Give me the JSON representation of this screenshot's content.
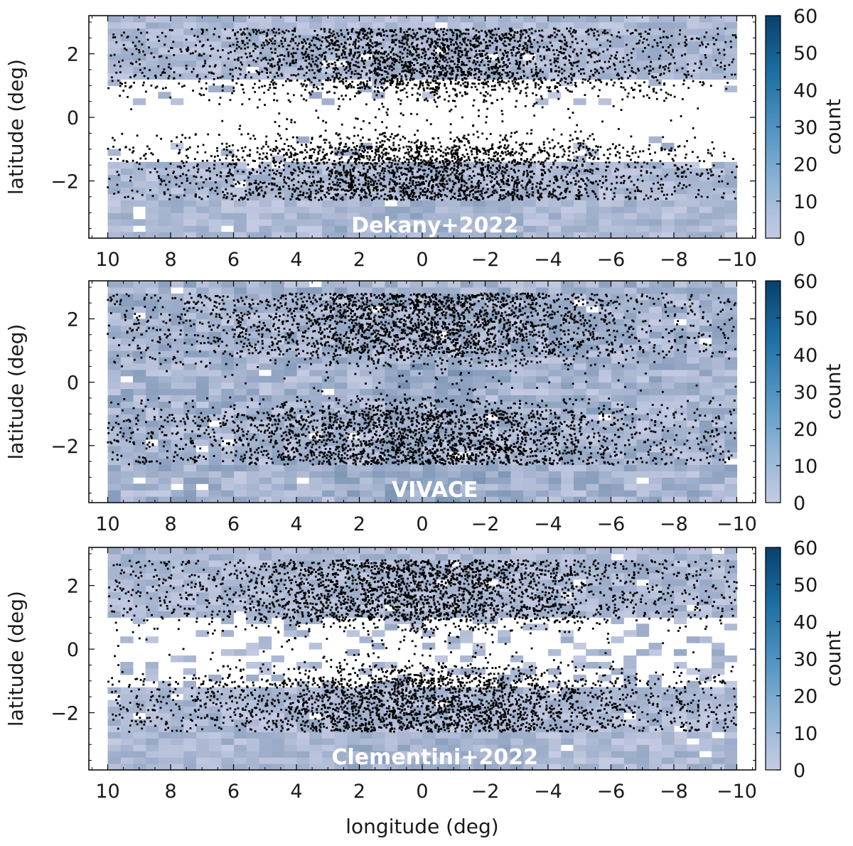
{
  "figure": {
    "xlabel": "longitude (deg)",
    "ylabel": "latitude (deg)",
    "colorbar_label": "count",
    "colorbar_ticks": [
      "0",
      "10",
      "20",
      "30",
      "40",
      "50",
      "60"
    ],
    "colormap": {
      "low": "#c5cbe3",
      "high": "#08406a"
    },
    "point_color": "#000000",
    "background_color": "#ffffff"
  },
  "chart_data": [
    {
      "type": "heatmap",
      "panel_label": "Dekany+2022",
      "xlabel": "",
      "ylabel": "latitude (deg)",
      "xlim": [
        10.6,
        -10.6
      ],
      "ylim": [
        -3.8,
        3.2
      ],
      "xticks": [
        "10",
        "8",
        "6",
        "4",
        "2",
        "0",
        "−2",
        "−4",
        "−6",
        "−8",
        "−10"
      ],
      "xtick_values": [
        10,
        8,
        6,
        4,
        2,
        0,
        -2,
        -4,
        -6,
        -8,
        -10
      ],
      "yticks": [
        "2",
        "0",
        "−2"
      ],
      "ytick_values": [
        2,
        0,
        -2
      ],
      "colorbar": {
        "label": "count",
        "range": [
          0,
          60
        ]
      },
      "scatter_region": {
        "l": [
          -10,
          10
        ],
        "b": [
          -2.6,
          2.8
        ]
      },
      "heatmap_region": {
        "l": [
          -10,
          10
        ],
        "b": [
          -3.8,
          3.2
        ]
      },
      "background_count_range": [
        0,
        15
      ],
      "density_note": "scatter dense at |b| ≈ 1–2.5 near l ≈ 0; near-empty at |b| < 0.5 (white gap in heatmap)"
    },
    {
      "type": "heatmap",
      "panel_label": "VIVACE",
      "xlabel": "",
      "ylabel": "latitude (deg)",
      "xlim": [
        10.6,
        -10.6
      ],
      "ylim": [
        -3.8,
        3.2
      ],
      "xticks": [
        "10",
        "8",
        "6",
        "4",
        "2",
        "0",
        "−2",
        "−4",
        "−6",
        "−8",
        "−10"
      ],
      "xtick_values": [
        10,
        8,
        6,
        4,
        2,
        0,
        -2,
        -4,
        -6,
        -8,
        -10
      ],
      "yticks": [
        "2",
        "0",
        "−2"
      ],
      "ytick_values": [
        2,
        0,
        -2
      ],
      "colorbar": {
        "label": "count",
        "range": [
          0,
          60
        ]
      },
      "scatter_region": {
        "l": [
          -10,
          10
        ],
        "b": [
          -2.6,
          2.8
        ]
      },
      "heatmap_region": {
        "l": [
          -10,
          10
        ],
        "b": [
          -3.8,
          3.2
        ]
      },
      "background_count_range": [
        0,
        20
      ],
      "density_note": "scatter dense at |b| ≈ 1–2.5 near l ≈ 0; heatmap continuous across b = 0"
    },
    {
      "type": "heatmap",
      "panel_label": "Clementini+2022",
      "xlabel": "longitude (deg)",
      "ylabel": "latitude (deg)",
      "xlim": [
        10.6,
        -10.6
      ],
      "ylim": [
        -3.8,
        3.2
      ],
      "xticks": [
        "10",
        "8",
        "6",
        "4",
        "2",
        "0",
        "−2",
        "−4",
        "−6",
        "−8",
        "−10"
      ],
      "xtick_values": [
        10,
        8,
        6,
        4,
        2,
        0,
        -2,
        -4,
        -6,
        -8,
        -10
      ],
      "yticks": [
        "2",
        "0",
        "−2"
      ],
      "ytick_values": [
        2,
        0,
        -2
      ],
      "colorbar": {
        "label": "count",
        "range": [
          0,
          60
        ]
      },
      "scatter_region": {
        "l": [
          -10,
          10
        ],
        "b": [
          -2.6,
          2.8
        ]
      },
      "heatmap_region": {
        "l": [
          -10,
          10
        ],
        "b": [
          -3.8,
          3.2
        ]
      },
      "background_count_range": [
        0,
        15
      ],
      "density_note": "scatter dense at |b| ≈ 1–2.5 near l ≈ 0; patchy heatmap gap at |b| < 1"
    }
  ]
}
